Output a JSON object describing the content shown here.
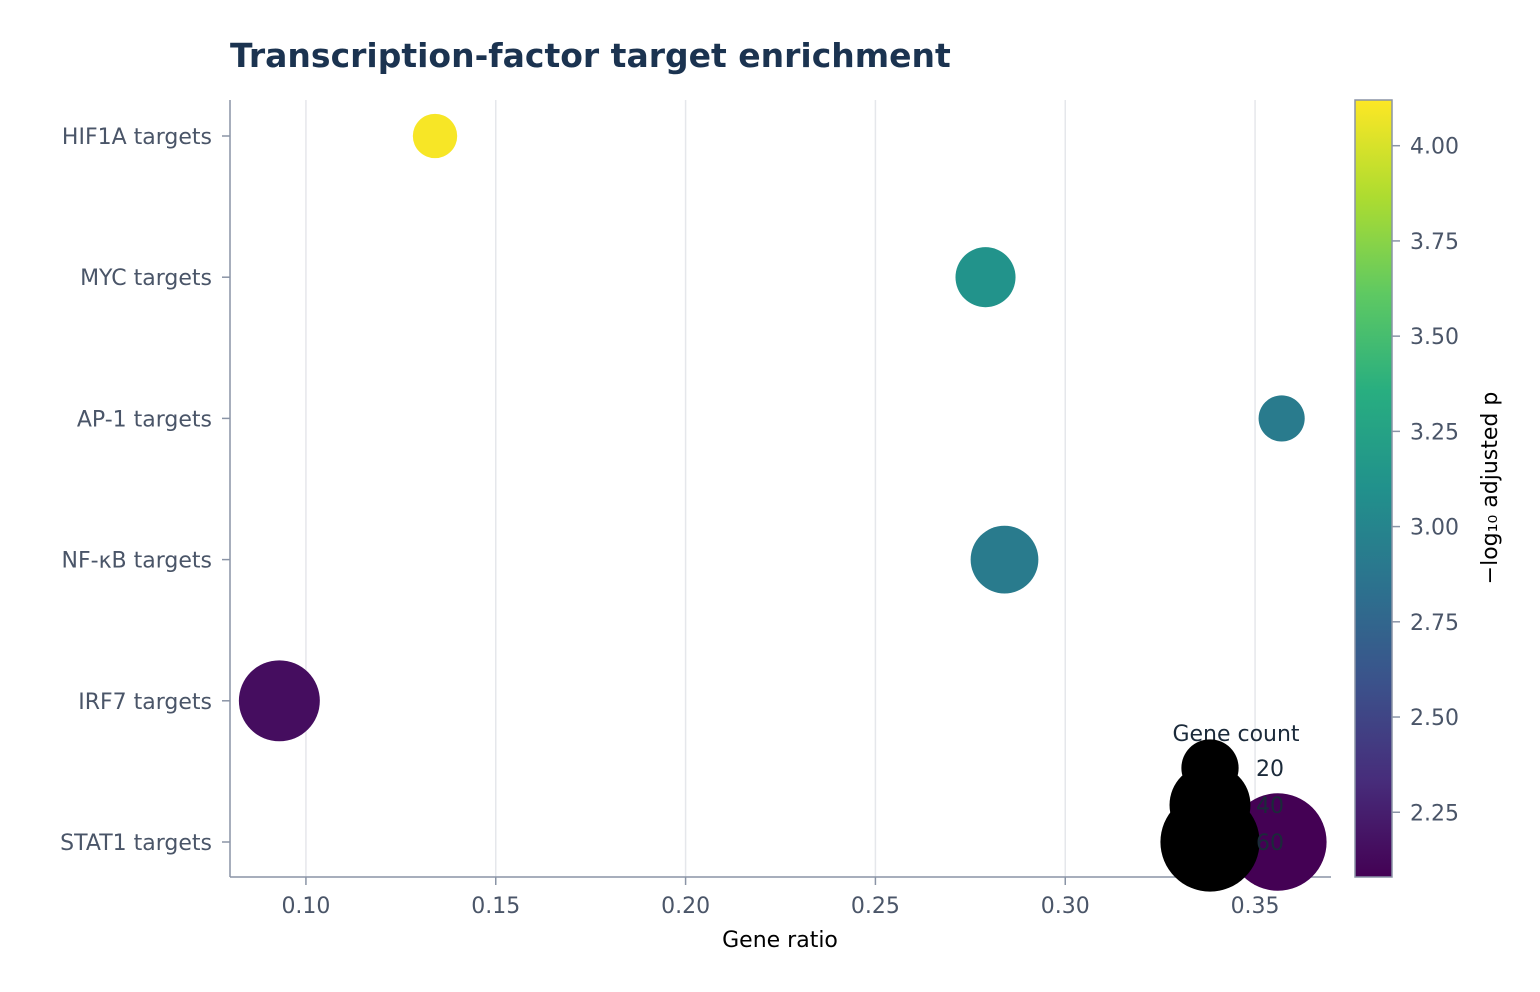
{
  "chart_data": {
    "type": "scatter",
    "title": "Transcription-factor target enrichment",
    "xlabel": "Gene ratio",
    "ylabel": "",
    "xlim": [
      0.08,
      0.37
    ],
    "xticks": [
      "0.10",
      "0.15",
      "0.20",
      "0.25",
      "0.30",
      "0.35"
    ],
    "xtick_values": [
      0.1,
      0.15,
      0.2,
      0.25,
      0.3,
      0.35
    ],
    "grid": "vertical",
    "categories": [
      "HIF1A targets",
      "MYC targets",
      "AP-1 targets",
      "NF-κB targets",
      "IRF7 targets",
      "STAT1 targets"
    ],
    "points": [
      {
        "category": "HIF1A targets",
        "x": 0.134,
        "gene_count": 12,
        "neg_log10_padj": 4.1
      },
      {
        "category": "MYC targets",
        "x": 0.279,
        "gene_count": 22,
        "neg_log10_padj": 3.12
      },
      {
        "category": "AP-1 targets",
        "x": 0.357,
        "gene_count": 13,
        "neg_log10_padj": 2.92
      },
      {
        "category": "NF-κB targets",
        "x": 0.284,
        "gene_count": 28,
        "neg_log10_padj": 2.92
      },
      {
        "category": "IRF7 targets",
        "x": 0.093,
        "gene_count": 40,
        "neg_log10_padj": 2.15
      },
      {
        "category": "STAT1 targets",
        "x": 0.356,
        "gene_count": 58,
        "neg_log10_padj": 2.08
      }
    ],
    "size_legend": {
      "title": "Gene count",
      "placement": "bottom-right",
      "entries": [
        {
          "label": "20",
          "value": 20
        },
        {
          "label": "40",
          "value": 40
        },
        {
          "label": "60",
          "value": 60
        }
      ]
    },
    "colorbar": {
      "label": "−log₁₀ adjusted p",
      "range": [
        2.08,
        4.12
      ],
      "ticks": [
        "2.25",
        "2.50",
        "2.75",
        "3.00",
        "3.25",
        "3.50",
        "3.75",
        "4.00"
      ],
      "tick_values": [
        2.25,
        2.5,
        2.75,
        3.0,
        3.25,
        3.5,
        3.75,
        4.0
      ],
      "colormap": "viridis"
    }
  }
}
